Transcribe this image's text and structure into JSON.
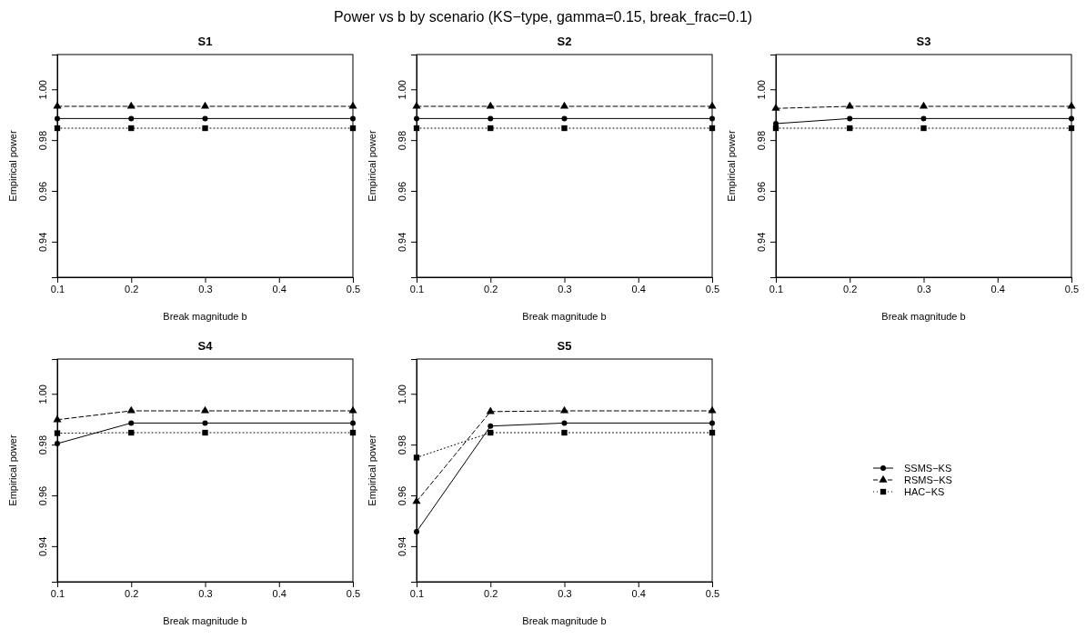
{
  "chart_data": [
    {
      "type": "line",
      "title": "S1",
      "xlabel": "Break magnitude b",
      "ylabel": "Empirical power",
      "annotations": [
        "Power vs b by scenario (KS−type, gamma=0.15, break_frac=0.1)"
      ],
      "x": [
        0.1,
        0.2,
        0.3,
        0.5
      ],
      "xlim": [
        0.1,
        0.5
      ],
      "xticks": [
        0.1,
        0.2,
        0.3,
        0.4,
        0.5
      ],
      "ylim": [
        0.926,
        1.0137
      ],
      "yticks": [
        {
          "value": 0.94,
          "label": "0.94"
        },
        {
          "value": 0.96,
          "label": "0.96"
        },
        {
          "value": 0.98,
          "label": "0.98"
        },
        {
          "value": 1,
          "label": "1.00"
        }
      ],
      "grid": false,
      "legend": false,
      "series": [
        {
          "color": "#000000",
          "marker": "circle",
          "line_style": "solid",
          "values": [
            0.9885,
            0.9885,
            0.9885,
            0.9885
          ]
        },
        {
          "color": "#000000",
          "marker": "triangle",
          "line_style": "dashed",
          "values": [
            0.9933,
            0.9933,
            0.9933,
            0.9933
          ]
        },
        {
          "color": "#000000",
          "marker": "square",
          "line_style": "dotted",
          "values": [
            0.9847,
            0.9847,
            0.9847,
            0.9847
          ]
        }
      ]
    },
    {
      "type": "line",
      "title": "S2",
      "xlabel": "Break magnitude b",
      "ylabel": "Empirical power",
      "x": [
        0.1,
        0.2,
        0.3,
        0.5
      ],
      "xlim": [
        0.1,
        0.5
      ],
      "xticks": [
        0.1,
        0.2,
        0.3,
        0.4,
        0.5
      ],
      "ylim": [
        0.926,
        1.0137
      ],
      "yticks": [
        {
          "value": 0.94,
          "label": "0.94"
        },
        {
          "value": 0.96,
          "label": "0.96"
        },
        {
          "value": 0.98,
          "label": "0.98"
        },
        {
          "value": 1,
          "label": "1.00"
        }
      ],
      "grid": false,
      "legend": false,
      "series": [
        {
          "color": "#000000",
          "marker": "circle",
          "line_style": "solid",
          "values": [
            0.9885,
            0.9885,
            0.9885,
            0.9885
          ]
        },
        {
          "color": "#000000",
          "marker": "triangle",
          "line_style": "dashed",
          "values": [
            0.9933,
            0.9933,
            0.9933,
            0.9933
          ]
        },
        {
          "color": "#000000",
          "marker": "square",
          "line_style": "dotted",
          "values": [
            0.9847,
            0.9847,
            0.9847,
            0.9847
          ]
        }
      ]
    },
    {
      "type": "line",
      "title": "S3",
      "xlabel": "Break magnitude b",
      "ylabel": "Empirical power",
      "x": [
        0.1,
        0.2,
        0.3,
        0.5
      ],
      "xlim": [
        0.1,
        0.5
      ],
      "xticks": [
        0.1,
        0.2,
        0.3,
        0.4,
        0.5
      ],
      "ylim": [
        0.926,
        1.0137
      ],
      "yticks": [
        {
          "value": 0.94,
          "label": "0.94"
        },
        {
          "value": 0.96,
          "label": "0.96"
        },
        {
          "value": 0.98,
          "label": "0.98"
        },
        {
          "value": 1,
          "label": "1.00"
        }
      ],
      "grid": false,
      "legend": false,
      "series": [
        {
          "color": "#000000",
          "marker": "circle",
          "line_style": "solid",
          "values": [
            0.9865,
            0.9885,
            0.9885,
            0.9885
          ]
        },
        {
          "color": "#000000",
          "marker": "triangle",
          "line_style": "dashed",
          "values": [
            0.9925,
            0.9933,
            0.9933,
            0.9933
          ]
        },
        {
          "color": "#000000",
          "marker": "square",
          "line_style": "dotted",
          "values": [
            0.9847,
            0.9847,
            0.9847,
            0.9847
          ]
        }
      ]
    },
    {
      "type": "line",
      "title": "S4",
      "xlabel": "Break magnitude b",
      "ylabel": "Empirical power",
      "x": [
        0.1,
        0.2,
        0.3,
        0.5
      ],
      "xlim": [
        0.1,
        0.5
      ],
      "xticks": [
        0.1,
        0.2,
        0.3,
        0.4,
        0.5
      ],
      "ylim": [
        0.926,
        1.0137
      ],
      "yticks": [
        {
          "value": 0.94,
          "label": "0.94"
        },
        {
          "value": 0.96,
          "label": "0.96"
        },
        {
          "value": 0.98,
          "label": "0.98"
        },
        {
          "value": 1,
          "label": "1.00"
        }
      ],
      "grid": false,
      "legend": false,
      "series": [
        {
          "color": "#000000",
          "marker": "circle",
          "line_style": "solid",
          "values": [
            0.9804,
            0.9885,
            0.9885,
            0.9885
          ]
        },
        {
          "color": "#000000",
          "marker": "triangle",
          "line_style": "dashed",
          "values": [
            0.9898,
            0.9933,
            0.9933,
            0.9933
          ]
        },
        {
          "color": "#000000",
          "marker": "square",
          "line_style": "dotted",
          "values": [
            0.9845,
            0.9847,
            0.9847,
            0.9847
          ]
        }
      ]
    },
    {
      "type": "line",
      "title": "S5",
      "xlabel": "Break magnitude b",
      "ylabel": "Empirical power",
      "x": [
        0.1,
        0.2,
        0.3,
        0.5
      ],
      "xlim": [
        0.1,
        0.5
      ],
      "xticks": [
        0.1,
        0.2,
        0.3,
        0.4,
        0.5
      ],
      "ylim": [
        0.926,
        1.0137
      ],
      "yticks": [
        {
          "value": 0.94,
          "label": "0.94"
        },
        {
          "value": 0.96,
          "label": "0.96"
        },
        {
          "value": 0.98,
          "label": "0.98"
        },
        {
          "value": 1,
          "label": "1.00"
        }
      ],
      "grid": false,
      "legend": "right",
      "series": [
        {
          "name": "SSMS−KS",
          "color": "#000000",
          "marker": "circle",
          "line_style": "solid",
          "values": [
            0.9457,
            0.9873,
            0.9885,
            0.9885
          ]
        },
        {
          "name": "RSMS−KS",
          "color": "#000000",
          "marker": "triangle",
          "line_style": "dashed",
          "values": [
            0.9576,
            0.993,
            0.9933,
            0.9933
          ]
        },
        {
          "name": "HAC−KS",
          "color": "#000000",
          "marker": "square",
          "line_style": "dotted",
          "values": [
            0.9749,
            0.9847,
            0.9847,
            0.9847
          ]
        }
      ]
    }
  ]
}
